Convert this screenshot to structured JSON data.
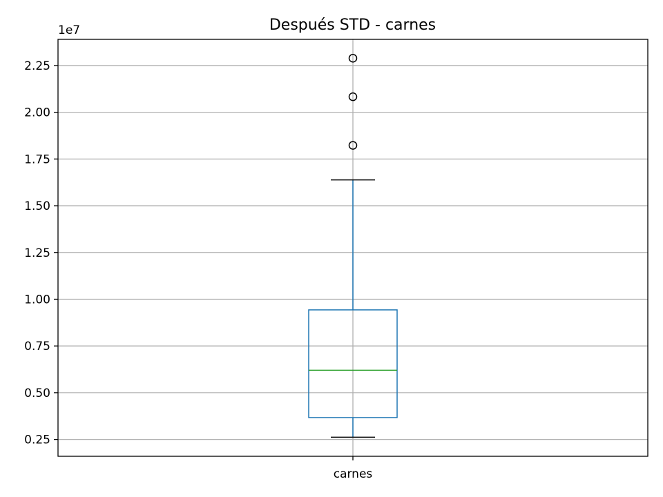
{
  "chart_data": {
    "type": "box",
    "title": "Después STD - carnes",
    "xlabel": "",
    "ylabel": "",
    "offset_label": "1e7",
    "categories": [
      "carnes"
    ],
    "ylim": [
      0.16,
      2.39
    ],
    "yticks": [
      0.25,
      0.5,
      0.75,
      1.0,
      1.25,
      1.5,
      1.75,
      2.0,
      2.25
    ],
    "ytick_labels": [
      "0.25",
      "0.50",
      "0.75",
      "1.00",
      "1.25",
      "1.50",
      "1.75",
      "2.00",
      "2.25"
    ],
    "grid": true,
    "boxes": [
      {
        "name": "carnes",
        "whisker_low": 0.262,
        "q1": 0.367,
        "median": 0.62,
        "q3": 0.943,
        "whisker_high": 1.638,
        "outliers": [
          1.823,
          2.083,
          2.289
        ]
      }
    ],
    "colors": {
      "box": "#1f77b4",
      "median": "#2ca02c",
      "whisker_cap": "#000000",
      "grid": "#b0b0b0",
      "axes": "#000000"
    }
  }
}
